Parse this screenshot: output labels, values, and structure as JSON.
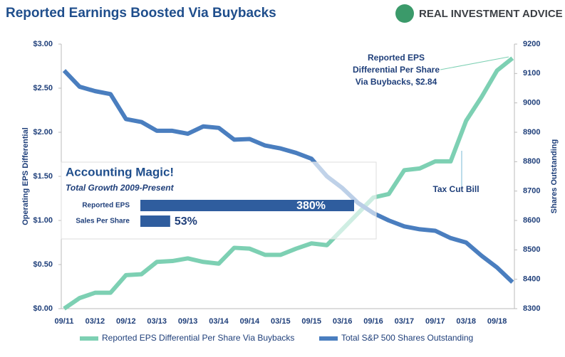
{
  "chart_data": {
    "type": "line",
    "title": "Reported Earnings Boosted Via Buybacks",
    "logo": "REAL INVESTMENT ADVICE",
    "ylabel": "Operating EPS Differential",
    "y2label": "Shares Outstanding",
    "categories": [
      "09/11",
      null,
      "03/12",
      null,
      "09/12",
      null,
      "03/13",
      null,
      "09/13",
      null,
      "03/14",
      null,
      "09/14",
      null,
      "03/15",
      null,
      "09/15",
      null,
      "03/16",
      null,
      "09/16",
      null,
      "03/17",
      null,
      "09/17",
      null,
      "03/18",
      null,
      "09/18",
      null
    ],
    "ylim": [
      0,
      3
    ],
    "yticks": [
      {
        "value": 0,
        "label": "$0.00"
      },
      {
        "value": 0.5,
        "label": "$0.50"
      },
      {
        "value": 1,
        "label": "$1.00"
      },
      {
        "value": 1.5,
        "label": "$1.50"
      },
      {
        "value": 2,
        "label": "$2.00"
      },
      {
        "value": 2.5,
        "label": "$2.50"
      },
      {
        "value": 3,
        "label": "$3.00"
      }
    ],
    "y2lim": [
      8300,
      9200
    ],
    "y2ticks": [
      8300,
      8400,
      8500,
      8600,
      8700,
      8800,
      8900,
      9000,
      9100,
      9200
    ],
    "series": [
      {
        "name": "Reported EPS Differential Per Share Via Buybacks",
        "color": "#7dd0b3",
        "values": [
          0.0,
          0.12,
          0.18,
          0.18,
          0.38,
          0.39,
          0.53,
          0.54,
          0.57,
          0.53,
          0.51,
          0.69,
          0.68,
          0.61,
          0.61,
          0.68,
          0.74,
          0.72,
          0.9,
          1.08,
          1.26,
          1.3,
          1.57,
          1.59,
          1.67,
          1.67,
          2.13,
          2.4,
          2.7,
          2.84
        ]
      },
      {
        "name": "Total S&P 500 Shares Outstanding",
        "color": "#4a7ebf",
        "axis": "y2",
        "values": [
          9110,
          9055,
          9040,
          9030,
          8945,
          8935,
          8905,
          8905,
          8895,
          8920,
          8915,
          8875,
          8877,
          8855,
          8845,
          8830,
          8810,
          8750,
          8710,
          8660,
          8625,
          8600,
          8580,
          8570,
          8565,
          8540,
          8525,
          8480,
          8440,
          8390
        ]
      }
    ],
    "annotations": [
      {
        "lines": [
          "Reported EPS",
          "Differential Per Share",
          "Via Buybacks,  $2.84"
        ]
      },
      {
        "lines": [
          "Tax Cut Bill"
        ]
      }
    ],
    "inset": {
      "title": "Accounting Magic!",
      "subtitle": "Total Growth 2009-Present",
      "categories": [
        "Reported EPS",
        "Sales Per Share"
      ],
      "values": [
        380,
        53
      ],
      "value_labels": [
        "380%",
        "53%"
      ],
      "color": "#2f5d9e"
    }
  }
}
